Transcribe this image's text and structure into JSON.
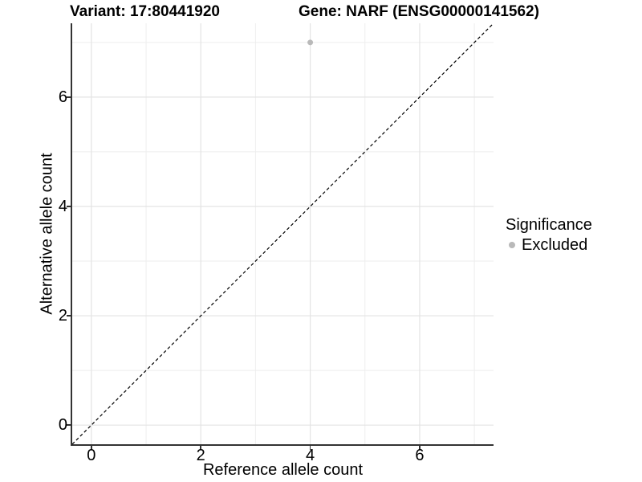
{
  "titles": {
    "variant": "Variant: 17:80441920",
    "gene": "Gene: NARF (ENSG00000141562)"
  },
  "chart_data": {
    "type": "scatter",
    "xlabel": "Reference allele count",
    "ylabel": "Alternative allele count",
    "xlim": [
      -0.35,
      7.35
    ],
    "ylim": [
      -0.35,
      7.35
    ],
    "x_ticks": [
      0,
      2,
      4,
      6
    ],
    "y_ticks": [
      0,
      2,
      4,
      6
    ],
    "x_minor": [
      1,
      3,
      5,
      7
    ],
    "y_minor": [
      1,
      3,
      5,
      7
    ],
    "grid": true,
    "points": [
      {
        "x": 4,
        "y": 7,
        "significance": "Excluded"
      }
    ],
    "identity_line": {
      "style": "dashed",
      "from": [
        -0.35,
        -0.35
      ],
      "to": [
        7.35,
        7.35
      ]
    },
    "legend": {
      "title": "Significance",
      "position": "right",
      "items": [
        {
          "label": "Excluded",
          "color": "#b9b9b9"
        }
      ]
    }
  },
  "colors": {
    "point": "#b9b9b9",
    "grid_major": "#e3e3e3",
    "grid_minor": "#eeeeee",
    "axis": "#333333",
    "dashed_line": "#000000",
    "text": "#000000",
    "background": "#ffffff"
  }
}
